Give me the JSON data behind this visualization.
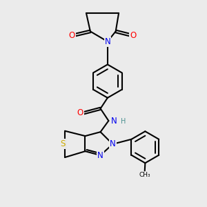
{
  "background_color": "#ebebeb",
  "bond_color": "#000000",
  "bond_width": 1.5,
  "atom_colors": {
    "O": "#ff0000",
    "N": "#0000ee",
    "S": "#ccaa00",
    "H": "#4a9090",
    "C": "#000000"
  },
  "font_size": 8.5
}
